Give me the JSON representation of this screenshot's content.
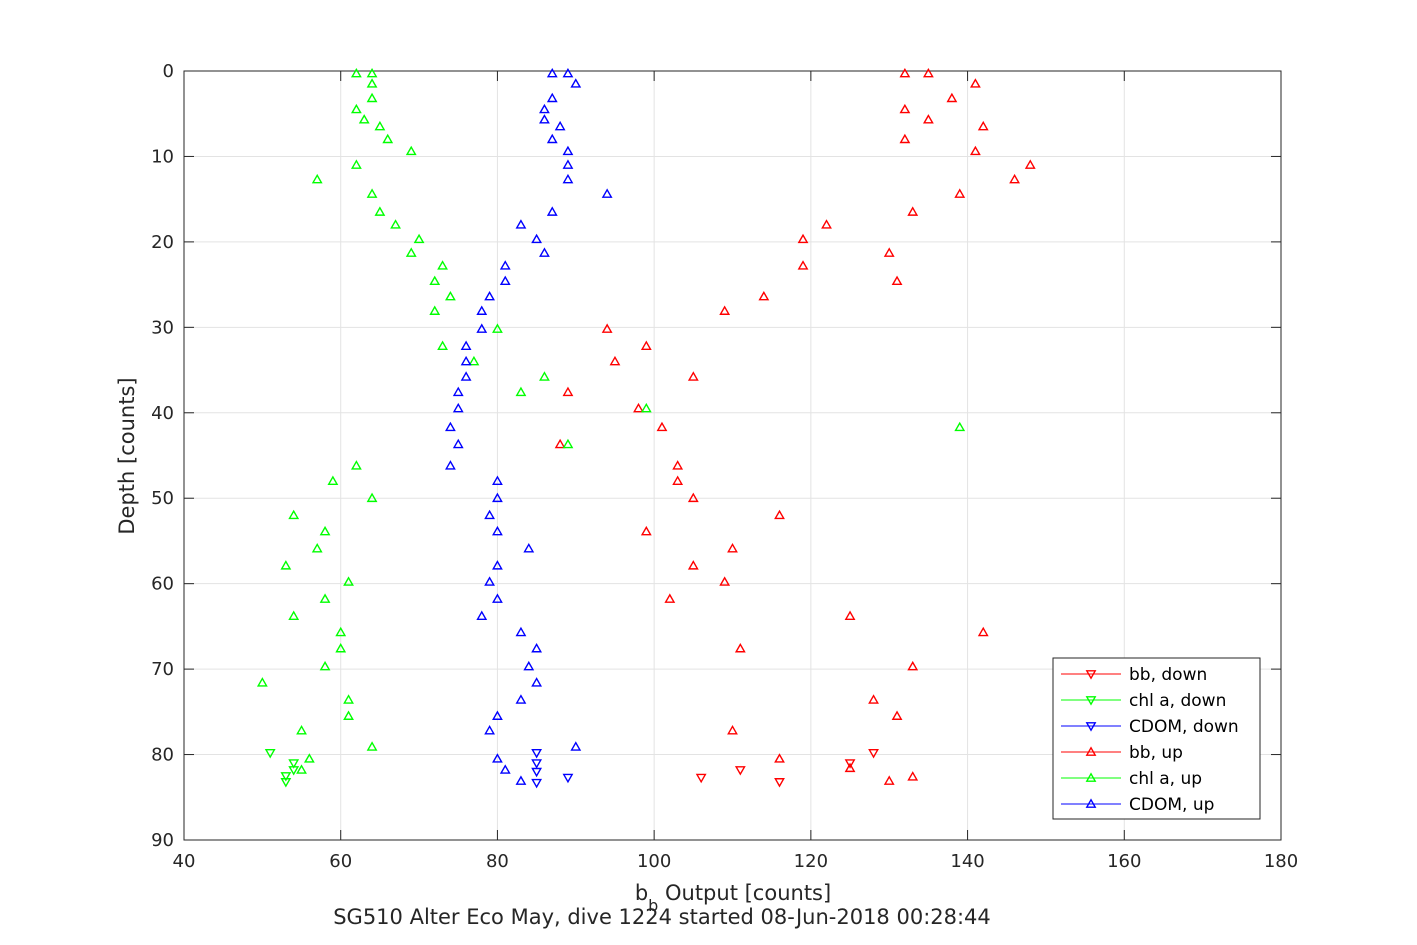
{
  "chart_data": {
    "type": "scatter",
    "title": "SG510 Alter Eco May, dive 1224 started 08-Jun-2018 00:28:44",
    "xlabel": "b_b Output [counts]",
    "xlabel_main": "b",
    "xlabel_sub": "b",
    "xlabel_rest": " Output [counts]",
    "ylabel": "Depth [counts]",
    "xlim": [
      40,
      180
    ],
    "ylim": [
      0,
      90
    ],
    "y_reversed": true,
    "grid": true,
    "legend_position": "bottom-right",
    "xticks": [
      40,
      60,
      80,
      100,
      120,
      140,
      160,
      180
    ],
    "yticks": [
      0,
      10,
      20,
      30,
      40,
      50,
      60,
      70,
      80,
      90
    ],
    "series": [
      {
        "name": "bb, down",
        "color": "#ff0000",
        "marker": "triangle-down",
        "points": [
          [
            106,
            82.7
          ],
          [
            111,
            81.8
          ],
          [
            116,
            83.2
          ],
          [
            125,
            81
          ],
          [
            128,
            79.8
          ]
        ]
      },
      {
        "name": "chl a, down",
        "color": "#00ff00",
        "marker": "triangle-down",
        "points": [
          [
            51,
            79.8
          ],
          [
            53,
            82.5
          ],
          [
            53,
            83.2
          ],
          [
            54,
            81
          ],
          [
            54,
            81.8
          ]
        ]
      },
      {
        "name": "CDOM, down",
        "color": "#0000ff",
        "marker": "triangle-down",
        "points": [
          [
            85,
            79.8
          ],
          [
            85,
            81
          ],
          [
            85,
            82
          ],
          [
            85,
            83.3
          ],
          [
            89,
            82.7
          ]
        ]
      },
      {
        "name": "bb, up",
        "color": "#ff0000",
        "marker": "triangle-up",
        "points": [
          [
            132,
            0.3
          ],
          [
            135,
            0.3
          ],
          [
            141,
            1.5
          ],
          [
            138,
            3.2
          ],
          [
            132,
            4.5
          ],
          [
            135,
            5.7
          ],
          [
            142,
            6.5
          ],
          [
            132,
            8
          ],
          [
            141,
            9.4
          ],
          [
            148,
            11
          ],
          [
            146,
            12.7
          ],
          [
            139,
            14.4
          ],
          [
            133,
            16.5
          ],
          [
            122,
            18
          ],
          [
            119,
            19.7
          ],
          [
            130,
            21.3
          ],
          [
            119,
            22.8
          ],
          [
            131,
            24.6
          ],
          [
            114,
            26.4
          ],
          [
            109,
            28.1
          ],
          [
            94,
            30.2
          ],
          [
            99,
            32.2
          ],
          [
            95,
            34
          ],
          [
            105,
            35.8
          ],
          [
            89,
            37.6
          ],
          [
            98,
            39.5
          ],
          [
            101,
            41.7
          ],
          [
            88,
            43.7
          ],
          [
            103,
            46.2
          ],
          [
            103,
            48
          ],
          [
            105,
            50
          ],
          [
            116,
            52
          ],
          [
            99,
            53.9
          ],
          [
            110,
            55.9
          ],
          [
            105,
            57.9
          ],
          [
            109,
            59.8
          ],
          [
            102,
            61.8
          ],
          [
            125,
            63.8
          ],
          [
            142,
            65.7
          ],
          [
            111,
            67.6
          ],
          [
            133,
            69.7
          ],
          [
            128,
            73.6
          ],
          [
            131,
            75.5
          ],
          [
            110,
            77.2
          ],
          [
            116,
            80.5
          ],
          [
            125,
            81.6
          ],
          [
            130,
            83.1
          ],
          [
            133,
            82.6
          ]
        ]
      },
      {
        "name": "chl a, up",
        "color": "#00ff00",
        "marker": "triangle-up",
        "points": [
          [
            62,
            0.3
          ],
          [
            64,
            0.3
          ],
          [
            64,
            1.5
          ],
          [
            64,
            3.2
          ],
          [
            62,
            4.5
          ],
          [
            63,
            5.7
          ],
          [
            65,
            6.5
          ],
          [
            66,
            8
          ],
          [
            69,
            9.4
          ],
          [
            62,
            11
          ],
          [
            57,
            12.7
          ],
          [
            64,
            14.4
          ],
          [
            65,
            16.5
          ],
          [
            67,
            18
          ],
          [
            70,
            19.7
          ],
          [
            69,
            21.3
          ],
          [
            73,
            22.8
          ],
          [
            72,
            24.6
          ],
          [
            74,
            26.4
          ],
          [
            72,
            28.1
          ],
          [
            80,
            30.2
          ],
          [
            73,
            32.2
          ],
          [
            77,
            34
          ],
          [
            86,
            35.8
          ],
          [
            83,
            37.6
          ],
          [
            99,
            39.5
          ],
          [
            139,
            41.7
          ],
          [
            89,
            43.7
          ],
          [
            62,
            46.2
          ],
          [
            59,
            48
          ],
          [
            64,
            50
          ],
          [
            54,
            52
          ],
          [
            58,
            53.9
          ],
          [
            57,
            55.9
          ],
          [
            53,
            57.9
          ],
          [
            61,
            59.8
          ],
          [
            58,
            61.8
          ],
          [
            54,
            63.8
          ],
          [
            60,
            65.7
          ],
          [
            60,
            67.6
          ],
          [
            58,
            69.7
          ],
          [
            50,
            71.6
          ],
          [
            61,
            73.6
          ],
          [
            61,
            75.5
          ],
          [
            55,
            77.2
          ],
          [
            64,
            79.1
          ],
          [
            56,
            80.5
          ],
          [
            55,
            81.8
          ]
        ]
      },
      {
        "name": "CDOM, up",
        "color": "#0000ff",
        "marker": "triangle-up",
        "points": [
          [
            87,
            0.3
          ],
          [
            89,
            0.3
          ],
          [
            90,
            1.5
          ],
          [
            87,
            3.2
          ],
          [
            86,
            4.5
          ],
          [
            86,
            5.7
          ],
          [
            88,
            6.5
          ],
          [
            87,
            8
          ],
          [
            89,
            9.4
          ],
          [
            89,
            11
          ],
          [
            89,
            12.7
          ],
          [
            94,
            14.4
          ],
          [
            87,
            16.5
          ],
          [
            83,
            18
          ],
          [
            85,
            19.7
          ],
          [
            86,
            21.3
          ],
          [
            81,
            22.8
          ],
          [
            81,
            24.6
          ],
          [
            79,
            26.4
          ],
          [
            78,
            28.1
          ],
          [
            78,
            30.2
          ],
          [
            76,
            32.2
          ],
          [
            76,
            34
          ],
          [
            76,
            35.8
          ],
          [
            75,
            37.6
          ],
          [
            75,
            39.5
          ],
          [
            74,
            41.7
          ],
          [
            75,
            43.7
          ],
          [
            74,
            46.2
          ],
          [
            80,
            48
          ],
          [
            80,
            50
          ],
          [
            79,
            52
          ],
          [
            80,
            53.9
          ],
          [
            84,
            55.9
          ],
          [
            80,
            57.9
          ],
          [
            79,
            59.8
          ],
          [
            80,
            61.8
          ],
          [
            78,
            63.8
          ],
          [
            83,
            65.7
          ],
          [
            85,
            67.6
          ],
          [
            84,
            69.7
          ],
          [
            85,
            71.6
          ],
          [
            83,
            73.6
          ],
          [
            80,
            75.5
          ],
          [
            79,
            77.2
          ],
          [
            90,
            79.1
          ],
          [
            80,
            80.5
          ],
          [
            81,
            81.8
          ],
          [
            83,
            83.1
          ]
        ]
      }
    ]
  }
}
